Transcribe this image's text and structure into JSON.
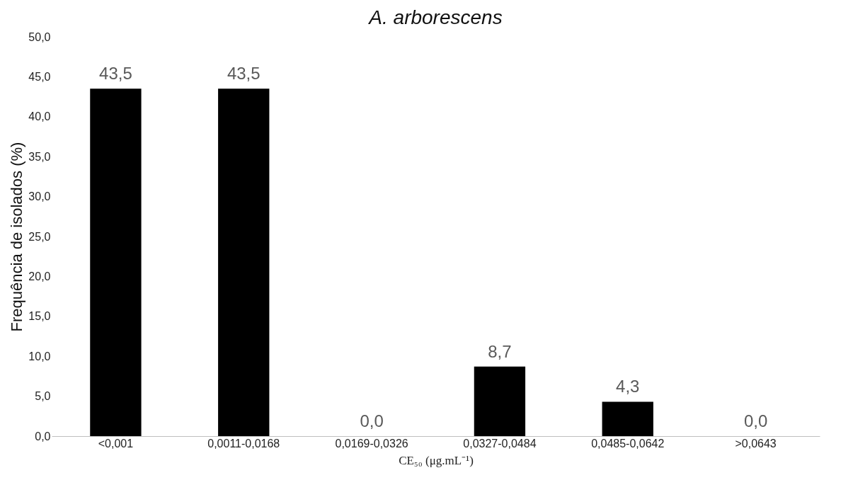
{
  "chart_data": {
    "type": "bar",
    "title": "A. arborescens",
    "xlabel": "CE₅₀ (μg.mL⁻¹)",
    "ylabel": "Frequência de isolados (%)",
    "categories": [
      "<0,001",
      "0,0011-0,0168",
      "0,0169-0,0326",
      "0,0327-0,0484",
      "0,0485-0,0642",
      ">0,0643"
    ],
    "values": [
      43.5,
      43.5,
      0.0,
      8.7,
      4.3,
      0.0
    ],
    "value_labels": [
      "43,5",
      "43,5",
      "0,0",
      "8,7",
      "4,3",
      "0,0"
    ],
    "color": "#000000",
    "ylim": [
      0,
      50
    ],
    "yticks": [
      {
        "value": 0,
        "label": "0,0"
      },
      {
        "value": 5,
        "label": "5,0"
      },
      {
        "value": 10,
        "label": "10,0"
      },
      {
        "value": 15,
        "label": "15,0"
      },
      {
        "value": 20,
        "label": "20,0"
      },
      {
        "value": 25,
        "label": "25,0"
      },
      {
        "value": 30,
        "label": "30,0"
      },
      {
        "value": 35,
        "label": "35,0"
      },
      {
        "value": 40,
        "label": "40,0"
      },
      {
        "value": 45,
        "label": "45,0"
      },
      {
        "value": 50,
        "label": "50,0"
      }
    ],
    "grid": false
  }
}
